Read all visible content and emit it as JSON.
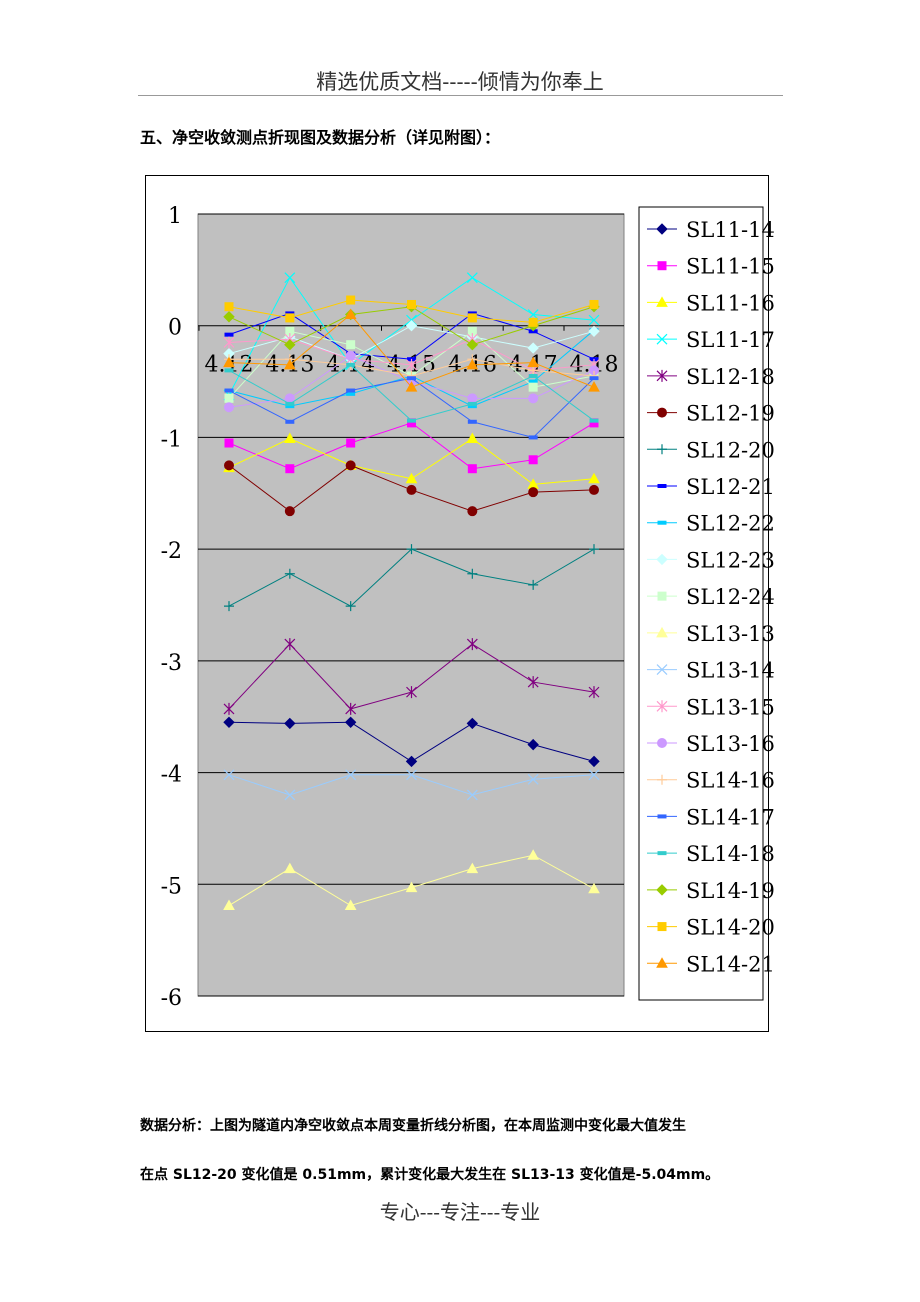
{
  "header": {
    "text": "精选优质文档-----倾情为你奉上"
  },
  "section_title": "五、净空收敛测点折现图及数据分析（详见附图）：",
  "analysis": {
    "line1": "数据分析：上图为隧道内净空收敛点本周变量折线分析图，在本周监测中变化最大值发生",
    "line2": "在点 SL12-20 变化值是 0.51mm，累计变化最大发生在 SL13-13 变化值是-5.04mm。"
  },
  "footer": {
    "text": "专心---专注---专业"
  },
  "chart_data": {
    "type": "line",
    "categories": [
      "4.12",
      "4.13",
      "4.14",
      "4.15",
      "4.16",
      "4.17",
      "4.18"
    ],
    "ylim": [
      -6,
      1
    ],
    "yticks": [
      "1",
      "0",
      "-1",
      "-2",
      "-3",
      "-4",
      "-5",
      "-6"
    ],
    "grid": true,
    "plot_background": "#c0c0c0",
    "legend_position": "right",
    "series": [
      {
        "name": "SL11-14",
        "color": "#000080",
        "marker": "diamond",
        "values": [
          -3.55,
          -3.56,
          -3.55,
          -3.9,
          -3.56,
          -3.75,
          -3.9
        ]
      },
      {
        "name": "SL11-15",
        "color": "#ff00ff",
        "marker": "square",
        "values": [
          -1.05,
          -1.28,
          -1.05,
          -0.87,
          -1.28,
          -1.2,
          -0.87
        ]
      },
      {
        "name": "SL11-16",
        "color": "#ffff00",
        "marker": "triangle",
        "values": [
          -1.27,
          -1.01,
          -1.25,
          -1.37,
          -1.01,
          -1.42,
          -1.37
        ]
      },
      {
        "name": "SL11-17",
        "color": "#00ffff",
        "marker": "x",
        "values": [
          -0.62,
          0.43,
          -0.35,
          0.05,
          0.43,
          0.1,
          0.05
        ]
      },
      {
        "name": "SL12-18",
        "color": "#800080",
        "marker": "star",
        "values": [
          -3.43,
          -2.85,
          -3.43,
          -3.28,
          -2.85,
          -3.19,
          -3.28
        ]
      },
      {
        "name": "SL12-19",
        "color": "#800000",
        "marker": "circle",
        "values": [
          -1.25,
          -1.66,
          -1.25,
          -1.47,
          -1.66,
          -1.49,
          -1.47
        ]
      },
      {
        "name": "SL12-20",
        "color": "#008080",
        "marker": "plus",
        "values": [
          -2.51,
          -2.22,
          -2.51,
          -2.0,
          -2.22,
          -2.32,
          -2.0
        ]
      },
      {
        "name": "SL12-21",
        "color": "#0000ff",
        "marker": "dash",
        "values": [
          -0.08,
          0.11,
          -0.25,
          -0.3,
          0.11,
          -0.05,
          -0.3
        ]
      },
      {
        "name": "SL12-22",
        "color": "#00ccff",
        "marker": "dash",
        "values": [
          -0.58,
          -0.72,
          -0.61,
          -0.45,
          -0.72,
          -0.5,
          -0.04
        ]
      },
      {
        "name": "SL12-23",
        "color": "#ccffff",
        "marker": "diamond",
        "values": [
          -0.25,
          -0.1,
          -0.3,
          0.0,
          -0.1,
          -0.2,
          -0.05
        ]
      },
      {
        "name": "SL12-24",
        "color": "#ccffcc",
        "marker": "square",
        "values": [
          -0.65,
          -0.05,
          -0.17,
          -0.45,
          -0.05,
          -0.55,
          -0.45
        ]
      },
      {
        "name": "SL13-13",
        "color": "#ffff99",
        "marker": "triangle",
        "values": [
          -5.19,
          -4.86,
          -5.19,
          -5.03,
          -4.86,
          -4.74,
          -5.04
        ]
      },
      {
        "name": "SL13-14",
        "color": "#99ccff",
        "marker": "x",
        "values": [
          -4.02,
          -4.2,
          -4.02,
          -4.02,
          -4.2,
          -4.06,
          -4.02
        ]
      },
      {
        "name": "SL13-15",
        "color": "#ff99cc",
        "marker": "star",
        "values": [
          -0.15,
          -0.12,
          -0.3,
          -0.35,
          -0.12,
          -0.4,
          -0.35
        ]
      },
      {
        "name": "SL13-16",
        "color": "#cc99ff",
        "marker": "circle",
        "values": [
          -0.73,
          -0.65,
          -0.27,
          -0.5,
          -0.65,
          -0.65,
          -0.4
        ]
      },
      {
        "name": "SL14-16",
        "color": "#ffcc99",
        "marker": "plus",
        "values": [
          -0.3,
          -0.3,
          -0.35,
          -0.45,
          -0.3,
          -0.4,
          -0.45
        ]
      },
      {
        "name": "SL14-17",
        "color": "#3366ff",
        "marker": "dash",
        "values": [
          -0.58,
          -0.86,
          -0.58,
          -0.47,
          -0.86,
          -1.0,
          -0.47
        ]
      },
      {
        "name": "SL14-18",
        "color": "#33cccc",
        "marker": "dash",
        "values": [
          -0.4,
          -0.7,
          -0.35,
          -0.85,
          -0.7,
          -0.45,
          -0.85
        ]
      },
      {
        "name": "SL14-19",
        "color": "#99cc00",
        "marker": "diamond",
        "values": [
          0.08,
          -0.17,
          0.1,
          0.17,
          -0.17,
          0.0,
          0.17
        ]
      },
      {
        "name": "SL14-20",
        "color": "#ffcc00",
        "marker": "square",
        "values": [
          0.17,
          0.07,
          0.23,
          0.19,
          0.07,
          0.03,
          0.19
        ]
      },
      {
        "name": "SL14-21",
        "color": "#ff9900",
        "marker": "triangle",
        "values": [
          -0.33,
          -0.35,
          0.1,
          -0.55,
          -0.35,
          -0.33,
          -0.55
        ]
      }
    ]
  }
}
